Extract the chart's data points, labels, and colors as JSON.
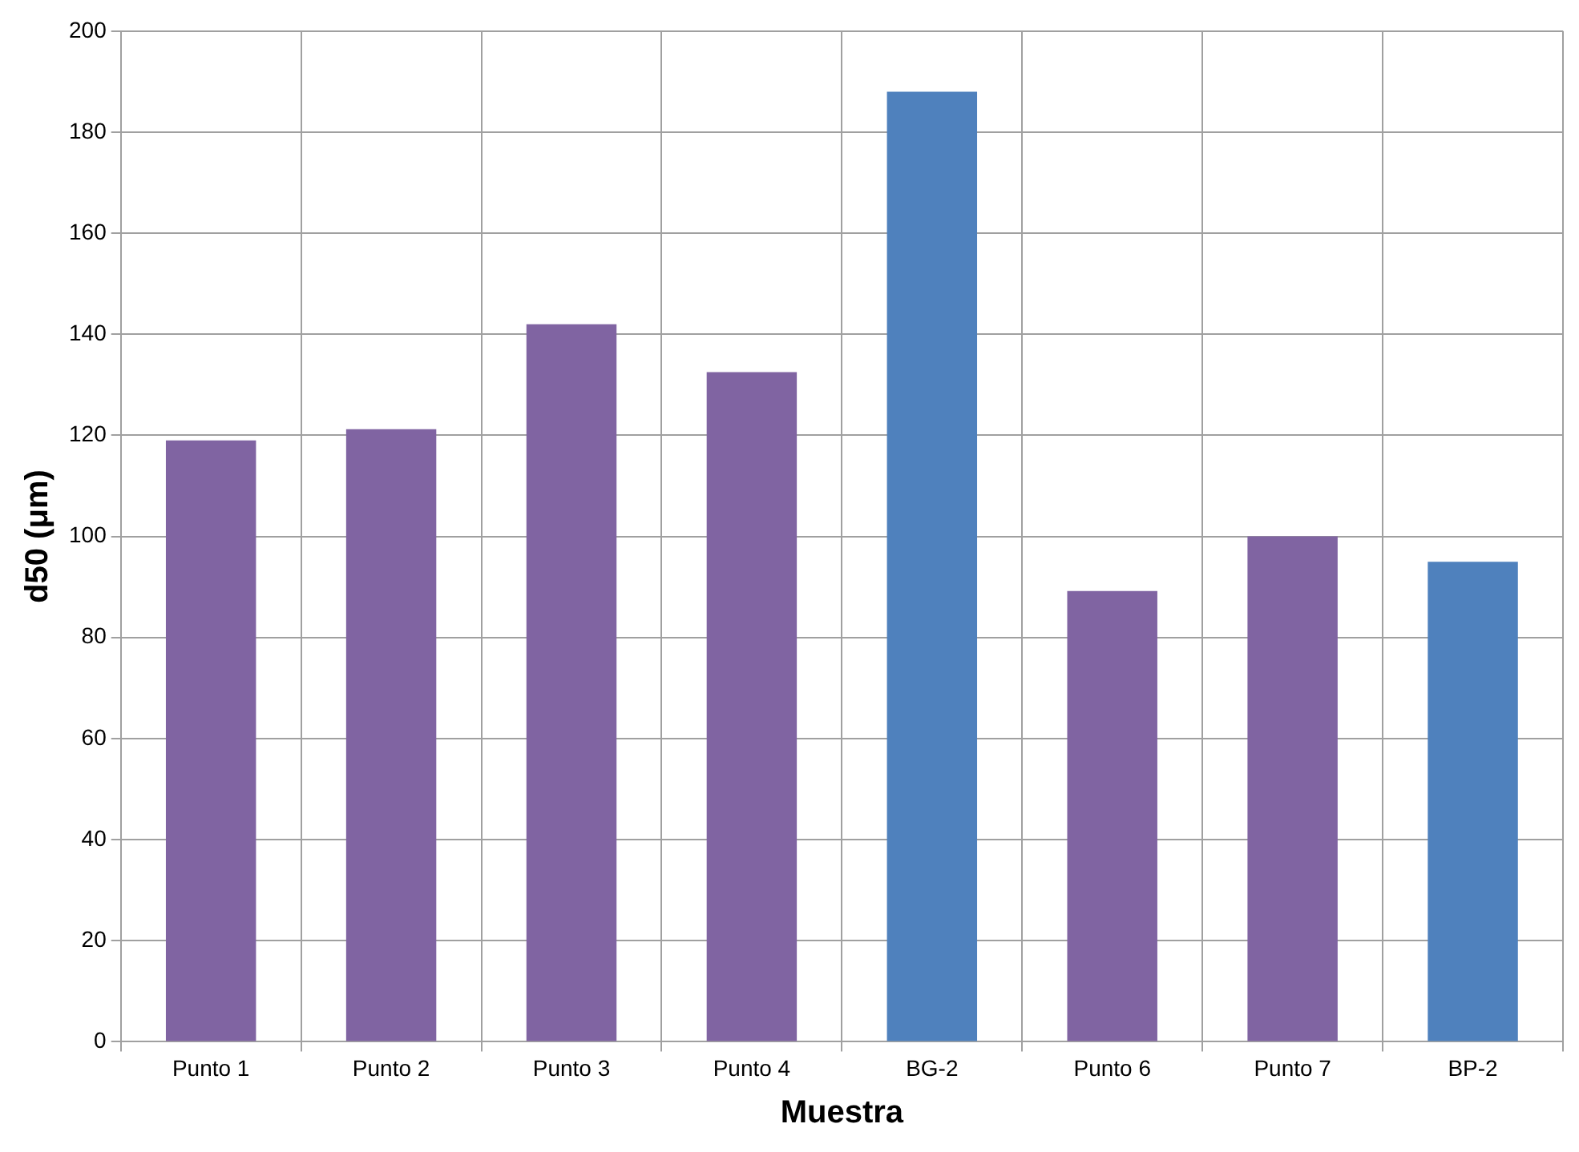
{
  "chart_data": {
    "type": "bar",
    "xlabel": "Muestra",
    "ylabel": "d50 (μm)",
    "categories": [
      "Punto 1",
      "Punto 2",
      "Punto 3",
      "Punto 4",
      "BG-2",
      "Punto 6",
      "Punto 7",
      "BP-2"
    ],
    "values": [
      119,
      121.2,
      142,
      132.5,
      188,
      89.2,
      100,
      95
    ],
    "colors": [
      "#8064a2",
      "#8064a2",
      "#8064a2",
      "#8064a2",
      "#4f81bd",
      "#8064a2",
      "#8064a2",
      "#4f81bd"
    ],
    "ylim": [
      0,
      200
    ],
    "yticks": [
      0,
      20,
      40,
      60,
      80,
      100,
      120,
      140,
      160,
      180,
      200
    ],
    "grid": true
  }
}
